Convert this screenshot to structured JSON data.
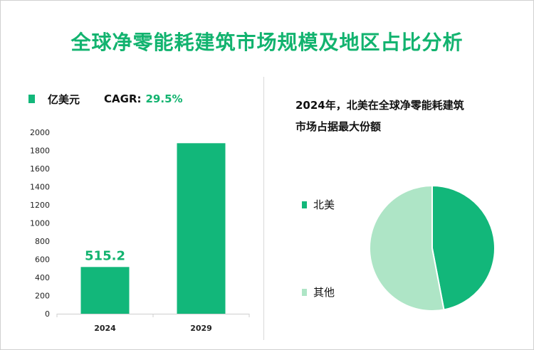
{
  "title": "全球净零能耗建筑市场规模及地区占比分析",
  "colors": {
    "accent": "#12b36f",
    "bar": "#12b77a",
    "pie_north_america": "#12b77a",
    "pie_other": "#aee5c6"
  },
  "left_legend": {
    "unit": "亿美元",
    "cagr_label": "CAGR:",
    "cagr_value": "29.5%"
  },
  "right_title_line1": "2024年，北美在全球净零能耗建筑",
  "right_title_line2": "市场占据最大份额",
  "chart_data": [
    {
      "type": "bar",
      "title": "",
      "xlabel": "",
      "ylabel": "",
      "categories": [
        "2024",
        "2029"
      ],
      "values": [
        515.2,
        1880
      ],
      "ylim": [
        0,
        2000
      ],
      "yticks": [
        0,
        200,
        400,
        600,
        800,
        1000,
        1200,
        1400,
        1600,
        1800,
        2000
      ],
      "data_labels": [
        "515.2",
        ""
      ],
      "grid": false,
      "legend": "top-left"
    },
    {
      "type": "pie",
      "title": "",
      "labels": [
        "北美",
        "其他"
      ],
      "values": [
        47,
        53
      ],
      "legend": "left"
    }
  ]
}
